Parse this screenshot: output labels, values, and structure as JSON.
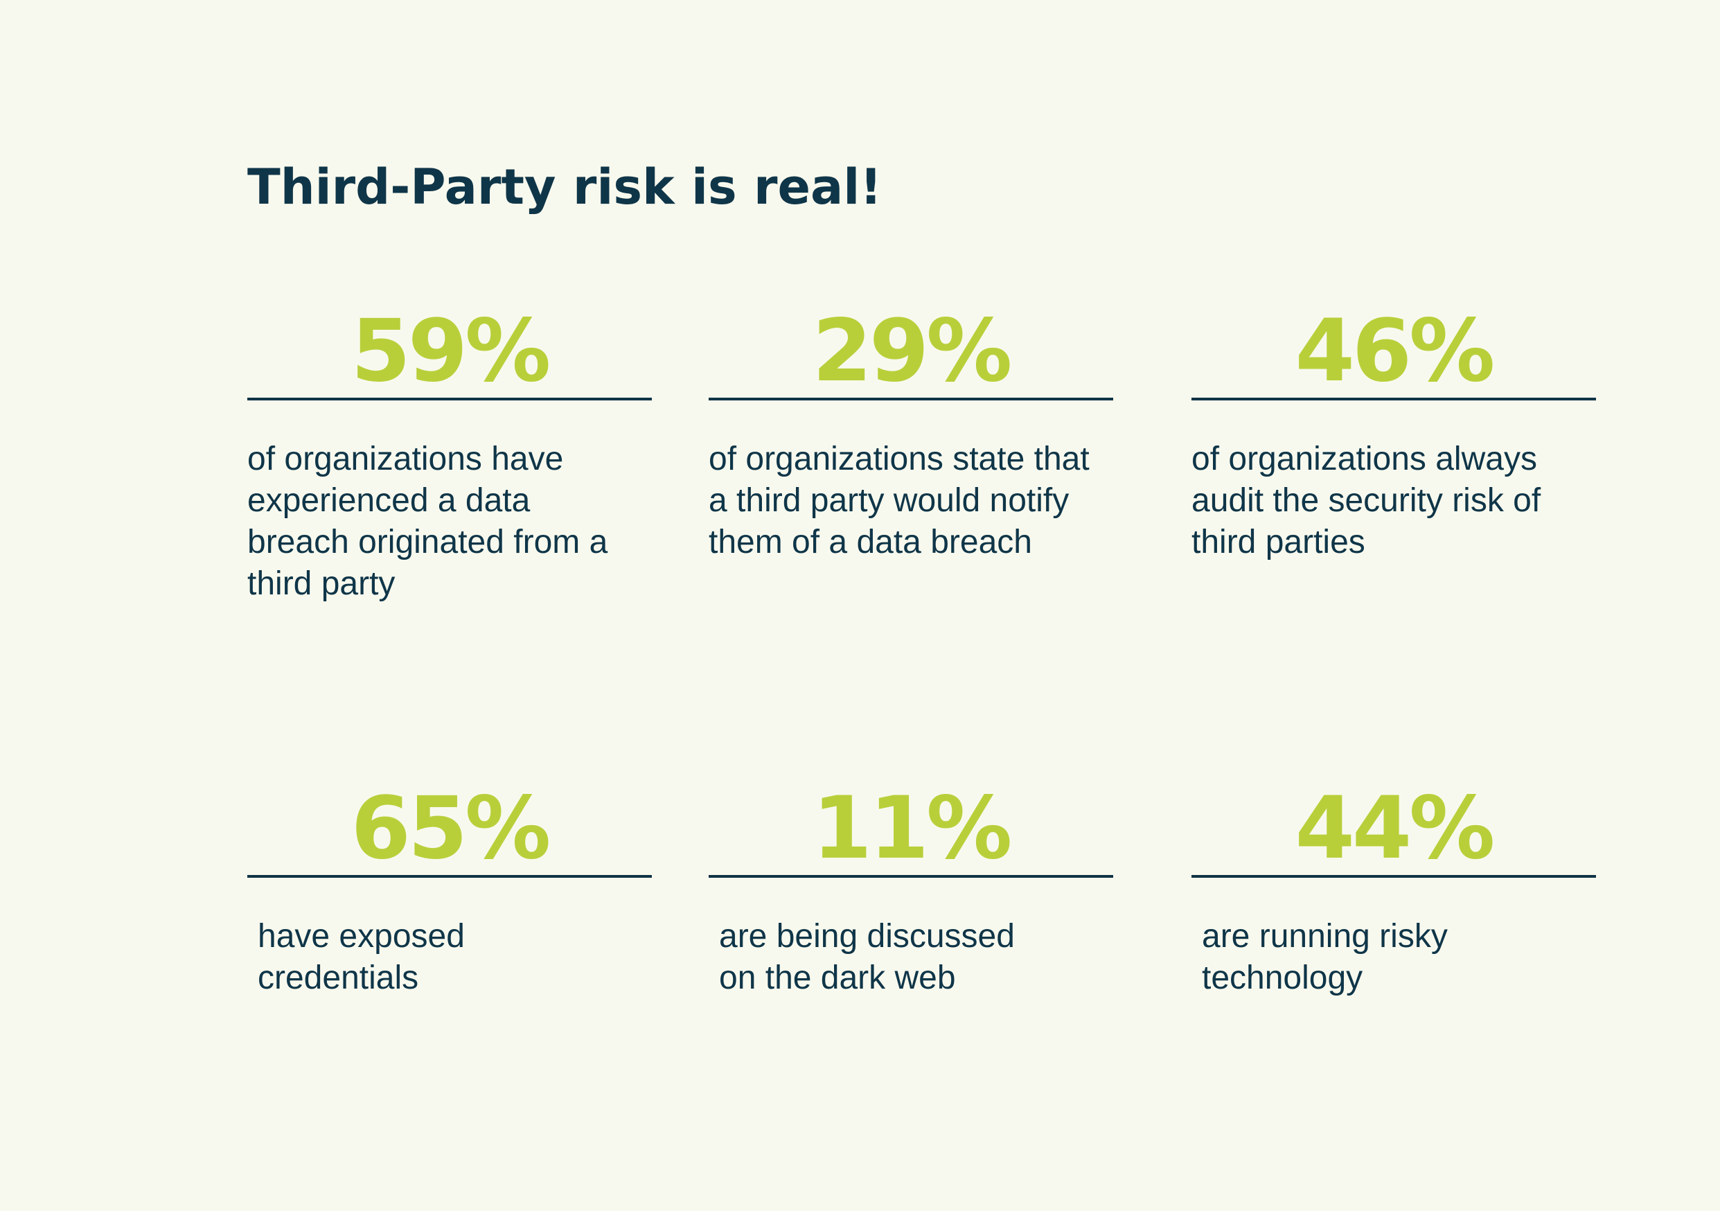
{
  "title": "Third-Party risk is real!",
  "colors": {
    "background": "#f8f9ee",
    "navy": "#0f3548",
    "accent": "#b9cf3a"
  },
  "stats": [
    {
      "value": "59%",
      "description": "of organizations have experienced a data breach originated from a third party"
    },
    {
      "value": "29%",
      "description": "of organizations state that a third party would notify them of a data breach"
    },
    {
      "value": "46%",
      "description": "of organizations always audit the security risk of third parties"
    },
    {
      "value": "65%",
      "description": "have exposed credentials"
    },
    {
      "value": "11%",
      "description": "are being discussed on the dark web"
    },
    {
      "value": "44%",
      "description": "are running risky technology"
    }
  ]
}
